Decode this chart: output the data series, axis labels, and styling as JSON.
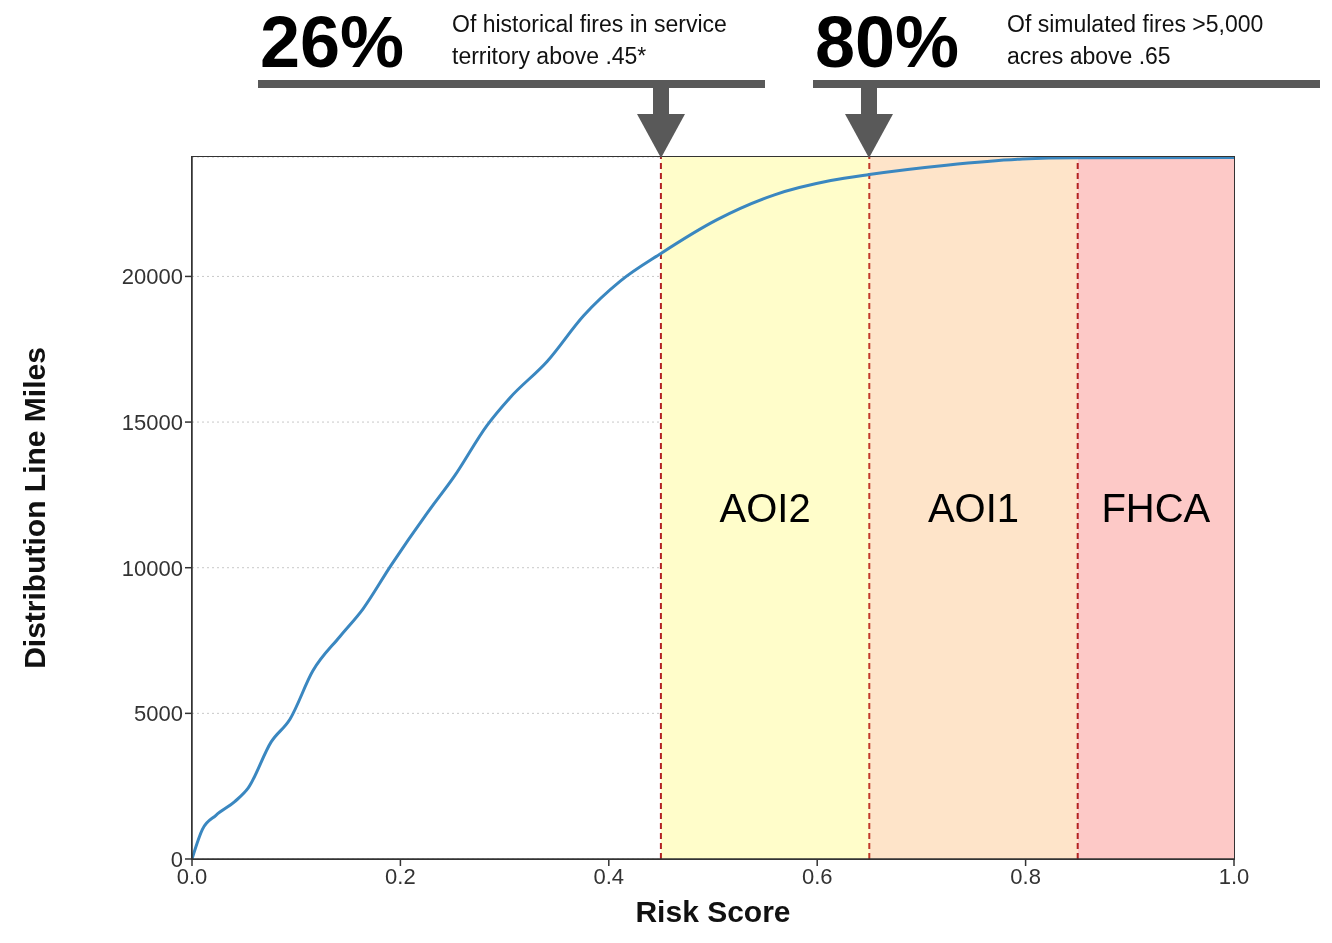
{
  "chart_data": {
    "type": "line",
    "xlabel": "Risk Score",
    "ylabel": "Distribution Line Miles",
    "x": [
      0,
      0.01,
      0.023,
      0.041,
      0.054,
      0.076,
      0.094,
      0.116,
      0.142,
      0.164,
      0.191,
      0.226,
      0.252,
      0.283,
      0.305,
      0.341,
      0.376,
      0.411,
      0.45,
      0.504,
      0.559,
      0.613,
      0.65,
      0.724,
      0.797,
      0.85,
      1.0
    ],
    "series": [
      {
        "color": "#3a87c0",
        "values": [
          0,
          1020,
          1500,
          1970,
          2440,
          4020,
          4800,
          6460,
          7640,
          8580,
          10080,
          11890,
          13150,
          14880,
          15830,
          17090,
          18660,
          19840,
          20790,
          21950,
          22800,
          23290,
          23500,
          23820,
          24030,
          24070,
          24080
        ]
      }
    ],
    "xlim": [
      0,
      1
    ],
    "ylim": [
      0,
      24100
    ],
    "xticks": [
      {
        "value": 0,
        "label": "0.0"
      },
      {
        "value": 0.2,
        "label": "0.2"
      },
      {
        "value": 0.4,
        "label": "0.4"
      },
      {
        "value": 0.6,
        "label": "0.6"
      },
      {
        "value": 0.8,
        "label": "0.8"
      },
      {
        "value": 1,
        "label": "1.0"
      }
    ],
    "yticks": [
      0,
      5000,
      10000,
      15000,
      20000
    ],
    "grid": "y",
    "legend": false,
    "marker": "none",
    "line_style": "solid",
    "bands": [
      {
        "axis": "x",
        "from": 0.45,
        "to": 0.65,
        "label": "AOI2",
        "color": "#fffdca"
      },
      {
        "axis": "x",
        "from": 0.65,
        "to": 0.85,
        "label": "AOI1",
        "color": "#fee4c9"
      },
      {
        "axis": "x",
        "from": 0.85,
        "to": 1.0,
        "label": "FHCA",
        "color": "#fdc9c7"
      }
    ],
    "ref_lines": [
      {
        "axis": "x",
        "value": 0.45,
        "color": "#b22222",
        "line_style": "dashed"
      },
      {
        "axis": "x",
        "value": 0.65,
        "color": "#c0392b",
        "line_style": "dashed"
      },
      {
        "axis": "x",
        "value": 0.85,
        "color": "#b22222",
        "line_style": "dashed"
      }
    ],
    "annotations": [
      "26%",
      "Of historical fires in service territory above .45*",
      "80%",
      "Of simulated fires >5,000 acres above .65"
    ]
  }
}
